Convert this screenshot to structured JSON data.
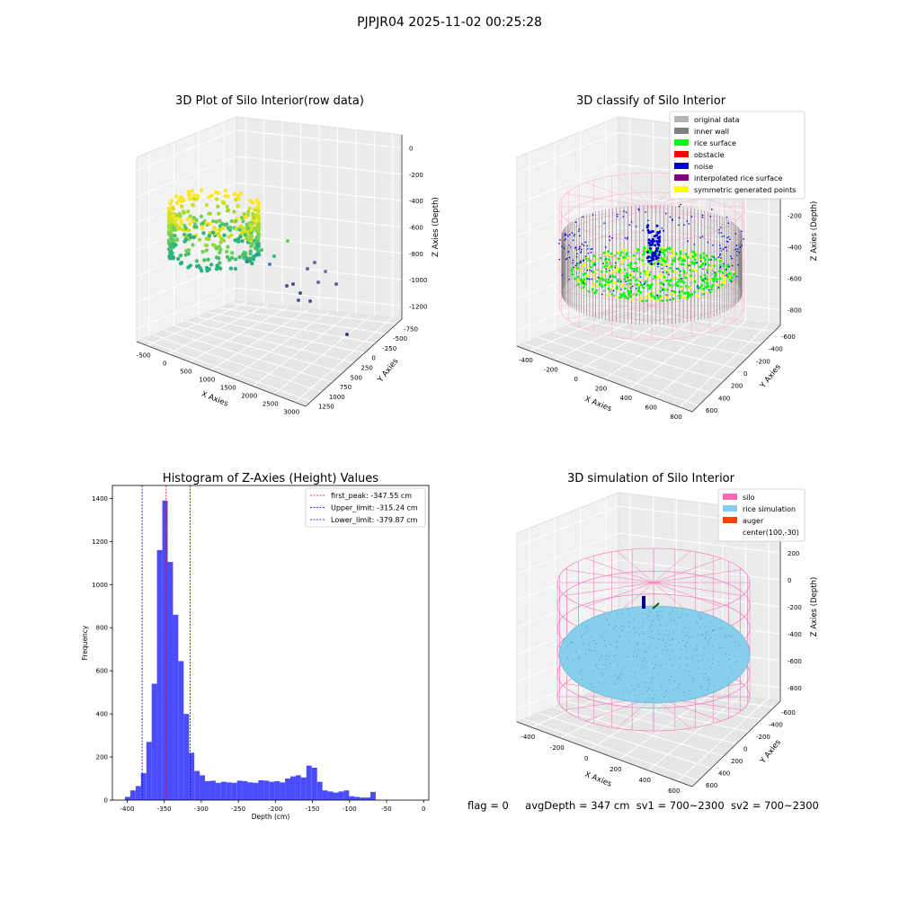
{
  "suptitle": "PJPJR04 2025-11-02 00:25:28",
  "footer": {
    "flag": "flag = 0",
    "avg_depth": "avgDepth = 347 cm",
    "sv1": "sv1 = 700~2300",
    "sv2": "sv2 = 700~2300"
  },
  "colors": {
    "hist_bar": "#4c4cff",
    "first_peak_line": "#ff0000",
    "limit_lines": "#0000cc",
    "original_data": "#b5b5b5",
    "inner_wall": "#808080",
    "rice_surface": "#00ff00",
    "obstacle": "#ff0000",
    "noise": "#0000dd",
    "interpolated_rice_surface": "#800080",
    "symmetric_generated_points": "#ffff00",
    "silo": "#ff69b4",
    "rice_simulation": "#87ceeb",
    "auger": "#ff4500",
    "pane": "#f2f2f2"
  },
  "chart_data": [
    {
      "type": "scatter",
      "title": "3D Plot of Silo Interior(row data)",
      "xlabel": "X Axies",
      "ylabel": "Y Axies",
      "zlabel": "Z Axies (Depth)",
      "x_ticks": [
        "-500",
        "0",
        "500",
        "1000",
        "1500",
        "2000",
        "2500",
        "3000"
      ],
      "y_ticks": [
        "-750",
        "-500",
        "-250",
        "0",
        "250",
        "500",
        "750",
        "1000",
        "1250"
      ],
      "z_ticks": [
        "0",
        "-200",
        "-400",
        "-600",
        "-800",
        "-1000",
        "-1200"
      ],
      "colormap": "viridis",
      "grid": true
    },
    {
      "type": "scatter",
      "title": "3D classify of Silo Interior",
      "xlabel": "X Axies",
      "ylabel": "Y Axies",
      "zlabel": "Z Axies (Depth)",
      "x_ticks": [
        "-400",
        "-200",
        "0",
        "200",
        "400",
        "600",
        "800"
      ],
      "y_ticks": [
        "-600",
        "-400",
        "-200",
        "0",
        "200",
        "400",
        "600"
      ],
      "z_ticks": [
        "200",
        "0",
        "-200",
        "-400",
        "-600",
        "-800"
      ],
      "legend": [
        "original data",
        "inner wall",
        "rice surface",
        "obstacle",
        "noise",
        "interpolated rice surface",
        "symmetric generated points"
      ],
      "legend_position": "upper-right",
      "grid": true
    },
    {
      "type": "bar",
      "title": "Histogram of Z-Axies (Height) Values",
      "xlabel": "Depth (cm)",
      "ylabel": "Frequency",
      "xlim": [
        -420,
        7
      ],
      "ylim": [
        0,
        1460
      ],
      "x_ticks": [
        -400,
        -350,
        -300,
        -250,
        -200,
        -150,
        -100,
        -50,
        0
      ],
      "y_ticks": [
        0,
        200,
        400,
        600,
        800,
        1000,
        1200,
        1400
      ],
      "bin_start": -403,
      "bin_width": 7.2,
      "values": [
        15,
        45,
        65,
        125,
        270,
        540,
        1160,
        1390,
        1105,
        860,
        645,
        400,
        220,
        135,
        115,
        88,
        90,
        80,
        85,
        82,
        80,
        90,
        88,
        82,
        80,
        92,
        90,
        85,
        88,
        82,
        100,
        110,
        115,
        105,
        160,
        150,
        85,
        45,
        40,
        35,
        40,
        45,
        18,
        15,
        12,
        12,
        38
      ],
      "vlines": [
        {
          "label": "first_peak: -347.55 cm",
          "x": -347.55
        },
        {
          "label": "Upper_limit: -315.24 cm",
          "x": -315.24
        },
        {
          "label": "Lower_limit: -379.87 cm",
          "x": -379.87
        }
      ],
      "legend_position": "upper-right",
      "grid": false
    },
    {
      "type": "scatter",
      "title": "3D simulation of Silo Interior",
      "xlabel": "X Axies",
      "ylabel": "Y Axies",
      "zlabel": "Z Axies (Depth)",
      "x_ticks": [
        "-400",
        "-200",
        "0",
        "200",
        "400",
        "600"
      ],
      "y_ticks": [
        "-600",
        "-400",
        "-200",
        "0",
        "200",
        "400",
        "600"
      ],
      "z_ticks": [
        "400",
        "200",
        "0",
        "-200",
        "-400",
        "-600",
        "-800"
      ],
      "legend": [
        "silo",
        "rice simulation",
        "auger",
        "center(100,-30)"
      ],
      "legend_position": "upper-right",
      "grid": true
    }
  ]
}
